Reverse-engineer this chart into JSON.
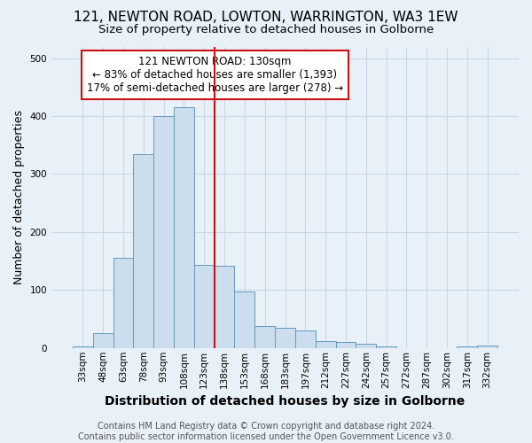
{
  "title1": "121, NEWTON ROAD, LOWTON, WARRINGTON, WA3 1EW",
  "title2": "Size of property relative to detached houses in Golborne",
  "xlabel": "Distribution of detached houses by size in Golborne",
  "ylabel": "Number of detached properties",
  "categories": [
    "33sqm",
    "48sqm",
    "63sqm",
    "78sqm",
    "93sqm",
    "108sqm",
    "123sqm",
    "138sqm",
    "153sqm",
    "168sqm",
    "183sqm",
    "197sqm",
    "212sqm",
    "227sqm",
    "242sqm",
    "257sqm",
    "272sqm",
    "287sqm",
    "302sqm",
    "317sqm",
    "332sqm"
  ],
  "values": [
    3,
    25,
    155,
    335,
    400,
    415,
    143,
    142,
    98,
    38,
    35,
    30,
    12,
    10,
    8,
    3,
    0,
    0,
    0,
    3,
    4
  ],
  "bar_color": "#ccdded",
  "bar_edge_color": "#6699bb",
  "grid_color": "#c8d8e8",
  "bg_color": "#e8f0f8",
  "vline_x": 6.5,
  "vline_color": "#cc1111",
  "annotation_text": "121 NEWTON ROAD: 130sqm\n← 83% of detached houses are smaller (1,393)\n17% of semi-detached houses are larger (278) →",
  "annotation_box_color": "#ffffff",
  "annotation_box_edge": "#cc1111",
  "footer": "Contains HM Land Registry data © Crown copyright and database right 2024.\nContains public sector information licensed under the Open Government Licence v3.0.",
  "ylim": [
    0,
    520
  ],
  "title1_fontsize": 11,
  "title2_fontsize": 9.5,
  "xlabel_fontsize": 10,
  "ylabel_fontsize": 9,
  "tick_fontsize": 7.5,
  "footer_fontsize": 7,
  "annot_fontsize": 8.5
}
